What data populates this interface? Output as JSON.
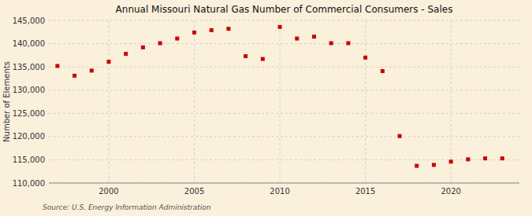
{
  "chart_data": {
    "type": "scatter",
    "title": "Annual Missouri Natural Gas Number of Commercial Consumers - Sales",
    "ylabel": "Number of Elements",
    "annotations": [
      "Source: U.S. Energy Information Administration"
    ],
    "x": [
      1997,
      1998,
      1999,
      2000,
      2001,
      2002,
      2003,
      2004,
      2005,
      2006,
      2007,
      2008,
      2009,
      2010,
      2011,
      2012,
      2013,
      2014,
      2015,
      2016,
      2017,
      2018,
      2019,
      2020,
      2021,
      2022,
      2023
    ],
    "values": [
      135200,
      133100,
      134200,
      136100,
      137800,
      139200,
      140100,
      141100,
      142400,
      142900,
      143200,
      137300,
      136700,
      143600,
      141100,
      141500,
      140100,
      140100,
      137000,
      134100,
      120100,
      113700,
      113900,
      114600,
      115100,
      115300,
      115300
    ],
    "color": "#cc0000",
    "marker": "square",
    "grid": true,
    "xlim": [
      1996.5,
      2024
    ],
    "xticks": [
      2000,
      2005,
      2010,
      2015,
      2020
    ],
    "ylim": [
      110000,
      145000
    ],
    "yticks": [
      {
        "value": 110000,
        "label": "110,000"
      },
      {
        "value": 115000,
        "label": "115,000"
      },
      {
        "value": 120000,
        "label": "120,000"
      },
      {
        "value": 125000,
        "label": "125,000"
      },
      {
        "value": 130000,
        "label": "130,000"
      },
      {
        "value": 135000,
        "label": "135,000"
      },
      {
        "value": 140000,
        "label": "140,000"
      },
      {
        "value": 145000,
        "label": "145,000"
      }
    ]
  }
}
